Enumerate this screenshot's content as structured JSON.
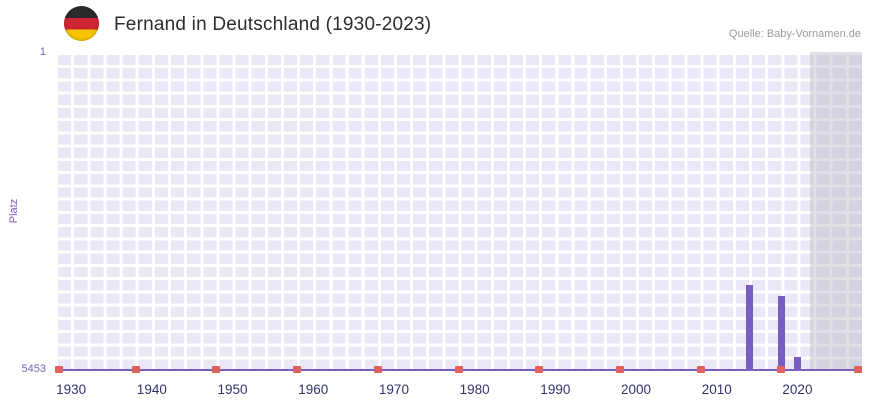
{
  "header": {
    "title": "Fernand in Deutschland (1930-2023)",
    "source": "Quelle: Baby-Vornamen.de",
    "flag_icon": "german-flag"
  },
  "chart_data": {
    "type": "bar",
    "title": "Fernand in Deutschland (1930-2023)",
    "ylabel": "Platz",
    "y_axis": {
      "top_label": "1",
      "bottom_label": "5453",
      "min": 1,
      "max": 5453,
      "inverted": true
    },
    "x_range": [
      1928,
      2028
    ],
    "x_ticks": [
      "1930",
      "1940",
      "1950",
      "1960",
      "1970",
      "1980",
      "1990",
      "2000",
      "2010",
      "2020"
    ],
    "bars": [
      {
        "year": 2014,
        "rank": 3990
      },
      {
        "year": 2018,
        "rank": 4180
      },
      {
        "year": 2020,
        "rank": 5230
      }
    ],
    "axis_decade_markers": [
      1928,
      1938,
      1948,
      1958,
      1968,
      1978,
      1988,
      1998,
      2008,
      2018,
      2028
    ],
    "no_data_region": {
      "start": 2021.5,
      "end": 2028
    },
    "grid": true,
    "colors": {
      "bar": "#7a5cc5",
      "marker": "#e0605e",
      "plot_bg": "#eae7f6",
      "grid": "#ffffff",
      "axis": "#7a5fbe",
      "x_tick_label": "#31336b",
      "y_tick_label": "#7a5fbe",
      "shade": "rgba(185,185,195,0.45)",
      "title": "#2d2d2d",
      "source": "#9b9b9b"
    }
  }
}
